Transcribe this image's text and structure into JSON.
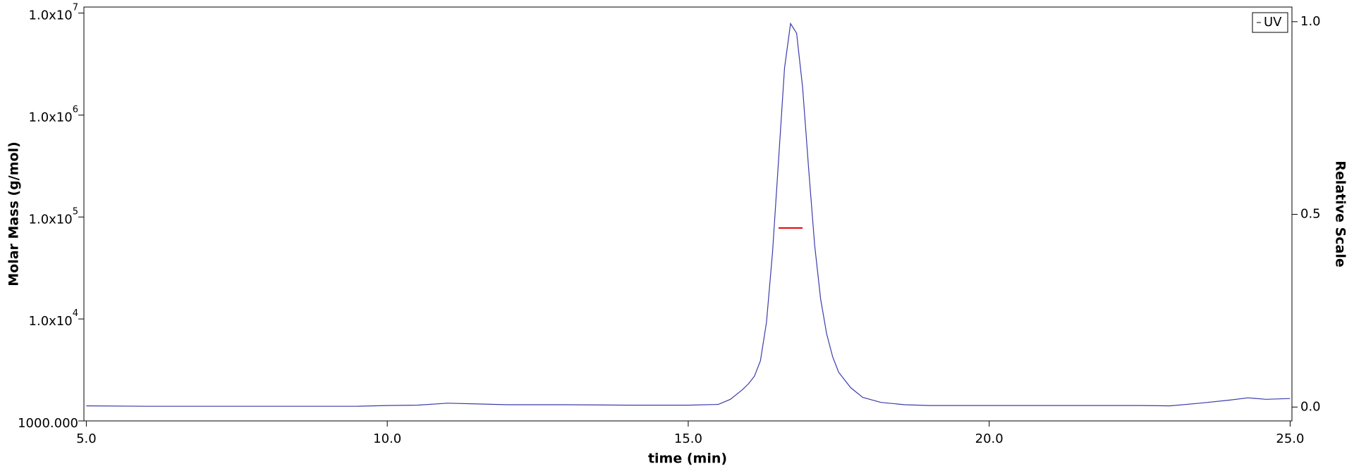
{
  "chart_data": {
    "type": "line",
    "xlabel": "time (min)",
    "ylabel": "Molar Mass (g/mol)",
    "y2label": "Relative Scale",
    "log_y": true,
    "legend": "upper right",
    "xlim": [
      4.96,
      25.03
    ],
    "xticks": [
      {
        "value": 5,
        "label": "5.0"
      },
      {
        "value": 10,
        "label": "10.0"
      },
      {
        "value": 15,
        "label": "15.0"
      },
      {
        "value": 20,
        "label": "20.0"
      },
      {
        "value": 25,
        "label": "25.0"
      }
    ],
    "ylim": [
      1000,
      11460000
    ],
    "yticks": [
      {
        "value": 1000,
        "label": "1000.000"
      },
      {
        "value": 10000,
        "label": "1.0x10",
        "exponent": "4"
      },
      {
        "value": 100000,
        "label": "1.0x10",
        "exponent": "5"
      },
      {
        "value": 1000000,
        "label": "1.0x10",
        "exponent": "6"
      },
      {
        "value": 10000000,
        "label": "1.0x10",
        "exponent": "7"
      }
    ],
    "y2lim": [
      -0.036,
      1.038
    ],
    "y2ticks": [
      {
        "value": 0,
        "label": "0.0"
      },
      {
        "value": 0.5,
        "label": "0.5"
      },
      {
        "value": 1,
        "label": "1.0"
      }
    ],
    "series": [
      {
        "name": "UV",
        "color": "#3b3bab",
        "axis": "y2",
        "x": [
          5.0,
          6,
          7,
          8,
          9,
          9.5,
          10,
          10.5,
          11,
          11.5,
          12,
          13,
          14,
          15,
          15.5,
          15.7,
          15.9,
          16.0,
          16.1,
          16.2,
          16.3,
          16.4,
          16.5,
          16.6,
          16.7,
          16.8,
          16.9,
          17.0,
          17.1,
          17.2,
          17.3,
          17.4,
          17.5,
          17.7,
          17.9,
          18.2,
          18.6,
          19,
          20,
          21,
          22,
          22.5,
          23,
          23.5,
          24,
          24.3,
          24.6,
          25
        ],
        "values": [
          0.003,
          0.002,
          0.002,
          0.002,
          0.002,
          0.002,
          0.004,
          0.005,
          0.01,
          0.008,
          0.006,
          0.006,
          0.005,
          0.005,
          0.007,
          0.02,
          0.045,
          0.06,
          0.08,
          0.12,
          0.22,
          0.4,
          0.64,
          0.88,
          0.995,
          0.97,
          0.83,
          0.62,
          0.42,
          0.28,
          0.19,
          0.13,
          0.09,
          0.05,
          0.025,
          0.012,
          0.006,
          0.004,
          0.004,
          0.004,
          0.004,
          0.004,
          0.003,
          0.01,
          0.018,
          0.024,
          0.02,
          0.022
        ]
      },
      {
        "color": "#e00000",
        "x": [
          16.5,
          16.6,
          16.7,
          16.8,
          16.9
        ],
        "values": [
          78000,
          78000,
          78000,
          78000,
          78000
        ]
      }
    ]
  }
}
